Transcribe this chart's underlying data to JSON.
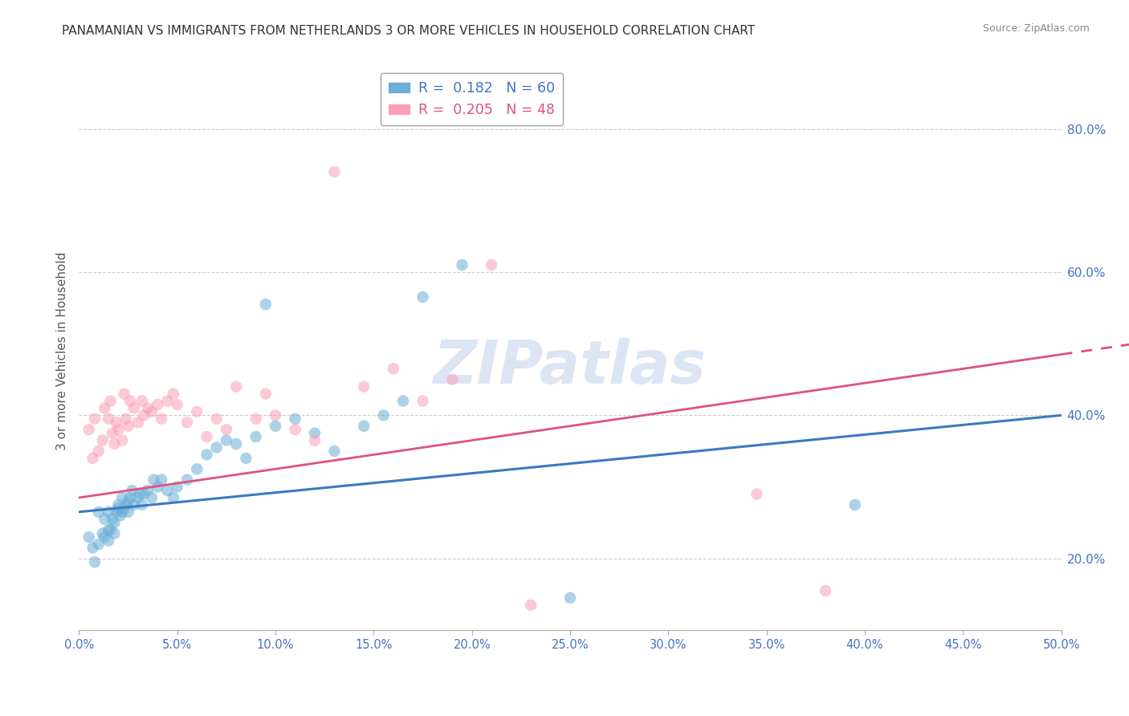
{
  "title": "PANAMANIAN VS IMMIGRANTS FROM NETHERLANDS 3 OR MORE VEHICLES IN HOUSEHOLD CORRELATION CHART",
  "source": "Source: ZipAtlas.com",
  "ylabel": "3 or more Vehicles in Household",
  "ylabel_right_ticks": [
    "20.0%",
    "40.0%",
    "60.0%",
    "80.0%"
  ],
  "ylabel_right_vals": [
    0.2,
    0.4,
    0.6,
    0.8
  ],
  "xmin": 0.0,
  "xmax": 0.5,
  "ymin": 0.1,
  "ymax": 0.88,
  "legend1_label": "R =  0.182   N = 60",
  "legend2_label": "R =  0.205   N = 48",
  "color_blue": "#6baed6",
  "color_pink": "#fa9fb5",
  "trendline_blue_x0": 0.0,
  "trendline_blue_y0": 0.265,
  "trendline_blue_x1": 0.5,
  "trendline_blue_y1": 0.4,
  "trendline_pink_x0": 0.0,
  "trendline_pink_y0": 0.285,
  "trendline_pink_x1": 0.5,
  "trendline_pink_y1": 0.485,
  "watermark": "ZIPatlas",
  "blue_points_x": [
    0.005,
    0.007,
    0.008,
    0.01,
    0.01,
    0.012,
    0.013,
    0.013,
    0.015,
    0.015,
    0.015,
    0.016,
    0.017,
    0.018,
    0.018,
    0.019,
    0.02,
    0.02,
    0.021,
    0.022,
    0.022,
    0.023,
    0.024,
    0.025,
    0.025,
    0.026,
    0.027,
    0.028,
    0.03,
    0.031,
    0.032,
    0.033,
    0.035,
    0.037,
    0.038,
    0.04,
    0.042,
    0.045,
    0.048,
    0.05,
    0.055,
    0.06,
    0.065,
    0.07,
    0.075,
    0.08,
    0.085,
    0.09,
    0.095,
    0.1,
    0.11,
    0.12,
    0.13,
    0.145,
    0.155,
    0.165,
    0.175,
    0.195,
    0.25,
    0.395
  ],
  "blue_points_y": [
    0.23,
    0.215,
    0.195,
    0.265,
    0.22,
    0.235,
    0.255,
    0.23,
    0.265,
    0.24,
    0.225,
    0.24,
    0.255,
    0.235,
    0.25,
    0.265,
    0.27,
    0.275,
    0.26,
    0.285,
    0.265,
    0.27,
    0.275,
    0.28,
    0.265,
    0.285,
    0.295,
    0.275,
    0.285,
    0.29,
    0.275,
    0.29,
    0.295,
    0.285,
    0.31,
    0.3,
    0.31,
    0.295,
    0.285,
    0.3,
    0.31,
    0.325,
    0.345,
    0.355,
    0.365,
    0.36,
    0.34,
    0.37,
    0.555,
    0.385,
    0.395,
    0.375,
    0.35,
    0.385,
    0.4,
    0.42,
    0.565,
    0.61,
    0.145,
    0.275
  ],
  "pink_points_x": [
    0.005,
    0.007,
    0.008,
    0.01,
    0.012,
    0.013,
    0.015,
    0.016,
    0.017,
    0.018,
    0.019,
    0.02,
    0.022,
    0.023,
    0.024,
    0.025,
    0.026,
    0.028,
    0.03,
    0.032,
    0.033,
    0.035,
    0.037,
    0.04,
    0.042,
    0.045,
    0.048,
    0.05,
    0.055,
    0.06,
    0.065,
    0.07,
    0.075,
    0.08,
    0.09,
    0.095,
    0.1,
    0.11,
    0.12,
    0.13,
    0.145,
    0.16,
    0.175,
    0.19,
    0.21,
    0.23,
    0.345,
    0.38
  ],
  "pink_points_y": [
    0.38,
    0.34,
    0.395,
    0.35,
    0.365,
    0.41,
    0.395,
    0.42,
    0.375,
    0.36,
    0.39,
    0.38,
    0.365,
    0.43,
    0.395,
    0.385,
    0.42,
    0.41,
    0.39,
    0.42,
    0.4,
    0.41,
    0.405,
    0.415,
    0.395,
    0.42,
    0.43,
    0.415,
    0.39,
    0.405,
    0.37,
    0.395,
    0.38,
    0.44,
    0.395,
    0.43,
    0.4,
    0.38,
    0.365,
    0.74,
    0.44,
    0.465,
    0.42,
    0.45,
    0.61,
    0.135,
    0.29,
    0.155
  ]
}
